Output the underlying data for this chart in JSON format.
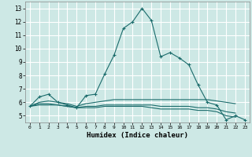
{
  "xlabel": "Humidex (Indice chaleur)",
  "background_color": "#cde8e5",
  "grid_color": "#ffffff",
  "line_color": "#1a6b6b",
  "xlim": [
    -0.5,
    23.5
  ],
  "ylim": [
    4.5,
    13.5
  ],
  "xticks": [
    0,
    1,
    2,
    3,
    4,
    5,
    6,
    7,
    8,
    9,
    10,
    11,
    12,
    13,
    14,
    15,
    16,
    17,
    18,
    19,
    20,
    21,
    22,
    23
  ],
  "yticks": [
    5,
    6,
    7,
    8,
    9,
    10,
    11,
    12,
    13
  ],
  "lines": [
    {
      "x": [
        0,
        1,
        2,
        3,
        4,
        5,
        6,
        7,
        8,
        9,
        10,
        11,
        12,
        13,
        14,
        15,
        16,
        17,
        18,
        19,
        20,
        21,
        22,
        23
      ],
      "y": [
        5.7,
        6.4,
        6.6,
        6.0,
        5.8,
        5.6,
        6.5,
        6.6,
        8.1,
        9.5,
        11.5,
        12.0,
        13.0,
        12.1,
        9.4,
        9.7,
        9.3,
        8.8,
        7.3,
        6.0,
        5.8,
        4.7,
        5.0,
        4.7
      ],
      "marker": true
    },
    {
      "x": [
        0,
        1,
        2,
        3,
        4,
        5,
        6,
        7,
        8,
        9,
        10,
        11,
        12,
        13,
        14,
        15,
        16,
        17,
        18,
        19,
        20,
        21,
        22
      ],
      "y": [
        5.7,
        6.0,
        6.1,
        6.0,
        5.9,
        5.7,
        5.9,
        6.0,
        6.1,
        6.2,
        6.2,
        6.2,
        6.2,
        6.2,
        6.2,
        6.2,
        6.2,
        6.2,
        6.2,
        6.2,
        6.1,
        6.0,
        5.9
      ],
      "marker": false
    },
    {
      "x": [
        0,
        1,
        2,
        3,
        4,
        5,
        6,
        7,
        8,
        9,
        10,
        11,
        12,
        13,
        14,
        15,
        16,
        17,
        18,
        19,
        20,
        21,
        22
      ],
      "y": [
        5.7,
        5.9,
        5.9,
        5.8,
        5.7,
        5.6,
        5.7,
        5.7,
        5.8,
        5.8,
        5.8,
        5.8,
        5.8,
        5.8,
        5.7,
        5.7,
        5.7,
        5.7,
        5.6,
        5.6,
        5.5,
        5.3,
        5.2
      ],
      "marker": false
    },
    {
      "x": [
        0,
        1,
        2,
        3,
        4,
        5,
        6,
        7,
        8,
        9,
        10,
        11,
        12,
        13,
        14,
        15,
        16,
        17,
        18,
        19,
        20,
        21,
        22
      ],
      "y": [
        5.7,
        5.8,
        5.8,
        5.8,
        5.7,
        5.6,
        5.6,
        5.6,
        5.7,
        5.7,
        5.7,
        5.7,
        5.7,
        5.6,
        5.5,
        5.5,
        5.5,
        5.5,
        5.4,
        5.4,
        5.3,
        5.0,
        4.9
      ],
      "marker": false
    }
  ]
}
